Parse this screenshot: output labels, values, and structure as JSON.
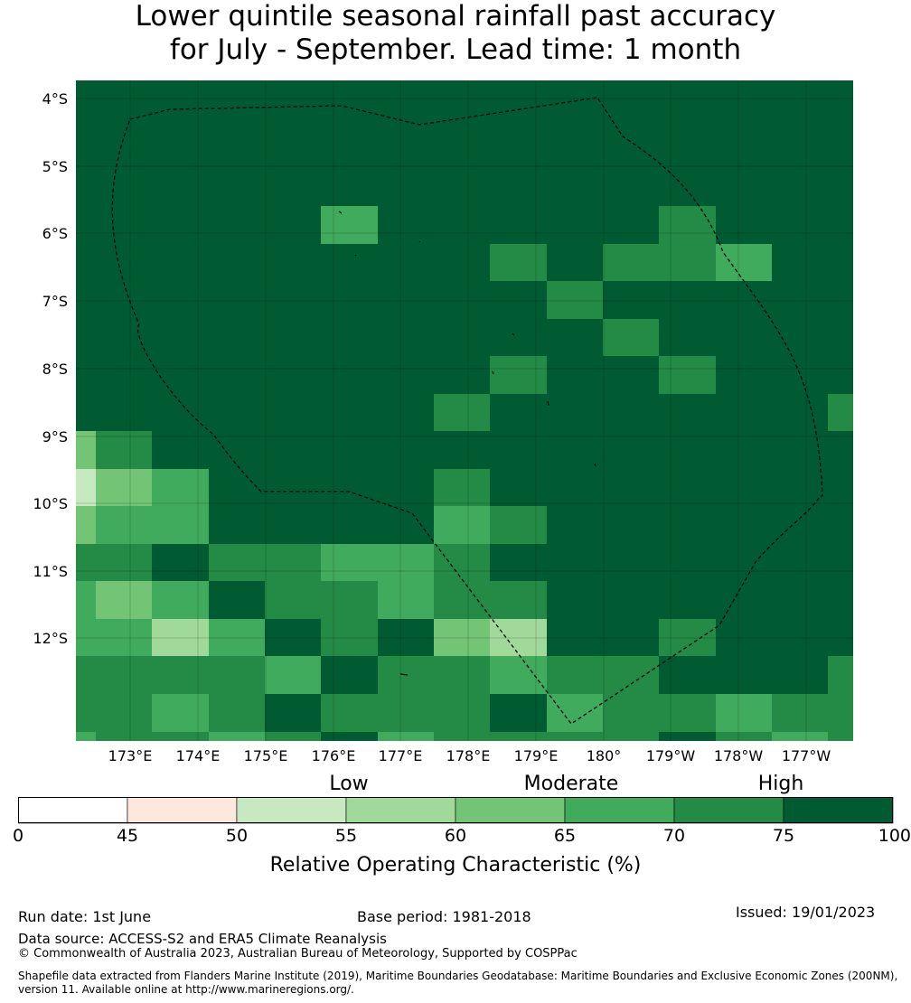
{
  "title_line1": "Lower quintile seasonal rainfall past accuracy",
  "title_line2": "for July - September. Lead time: 1 month",
  "map": {
    "lat_labels": [
      "4°S",
      "5°S",
      "6°S",
      "7°S",
      "8°S",
      "9°S",
      "10°S",
      "11°S",
      "12°S"
    ],
    "lon_labels": [
      "173°E",
      "174°E",
      "175°E",
      "176°E",
      "177°E",
      "178°E",
      "179°E",
      "180°",
      "179°W",
      "178°W",
      "177°W"
    ]
  },
  "colorbar": {
    "categories": [
      "Low",
      "Moderate",
      "High"
    ],
    "ticks": [
      "0",
      "45",
      "50",
      "55",
      "60",
      "65",
      "70",
      "75",
      "100"
    ],
    "colors": [
      "#ffffff",
      "#fee8de",
      "#c7e9c0",
      "#a1d99b",
      "#74c476",
      "#41ab5d",
      "#238b45",
      "#005a32"
    ],
    "label": "Relative Operating Characteristic (%)"
  },
  "footer": {
    "run_date": "Run date: 1st June",
    "base_period": "Base period: 1981-2018",
    "issued": "Issued: 19/01/2023",
    "data_source": "Data source: ACCESS-S2 and ERA5 Climate Reanalysis",
    "copyright": "© Commonwealth of Australia 2023, Australian Bureau of Meteorology, Supported by COSPPac",
    "shapefile_line1": "Shapefile data extracted from Flanders Marine Institute (2019), Maritime Boundaries Geodatabase: Maritime Boundaries and Exclusive Economic Zones (200NM),",
    "shapefile_line2": "version 11. Available online at http://www.marineregions.org/."
  }
}
